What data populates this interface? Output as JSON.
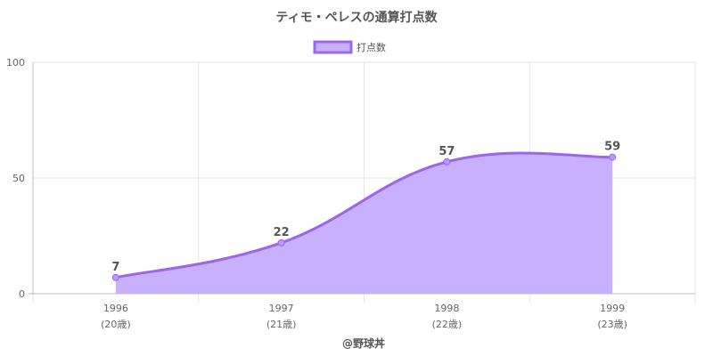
{
  "chart_data": {
    "type": "area",
    "title": "ティモ・ペレスの通算打点数",
    "legend": {
      "label": "打点数",
      "position": "top"
    },
    "categories": [
      "1996",
      "1997",
      "1998",
      "1999"
    ],
    "category_sublabels": [
      "(20歳)",
      "(21歳)",
      "(22歳)",
      "(23歳)"
    ],
    "series": [
      {
        "name": "打点数",
        "values": [
          7,
          22,
          57,
          59
        ]
      }
    ],
    "y_ticks": [
      0,
      50,
      100
    ],
    "ylim": [
      0,
      100
    ],
    "xlabel": "@野球丼",
    "ylabel": "",
    "grid": true,
    "colors": {
      "line": "#9966ee",
      "fill": "#c9b0ff",
      "point": "#b799ff"
    }
  }
}
